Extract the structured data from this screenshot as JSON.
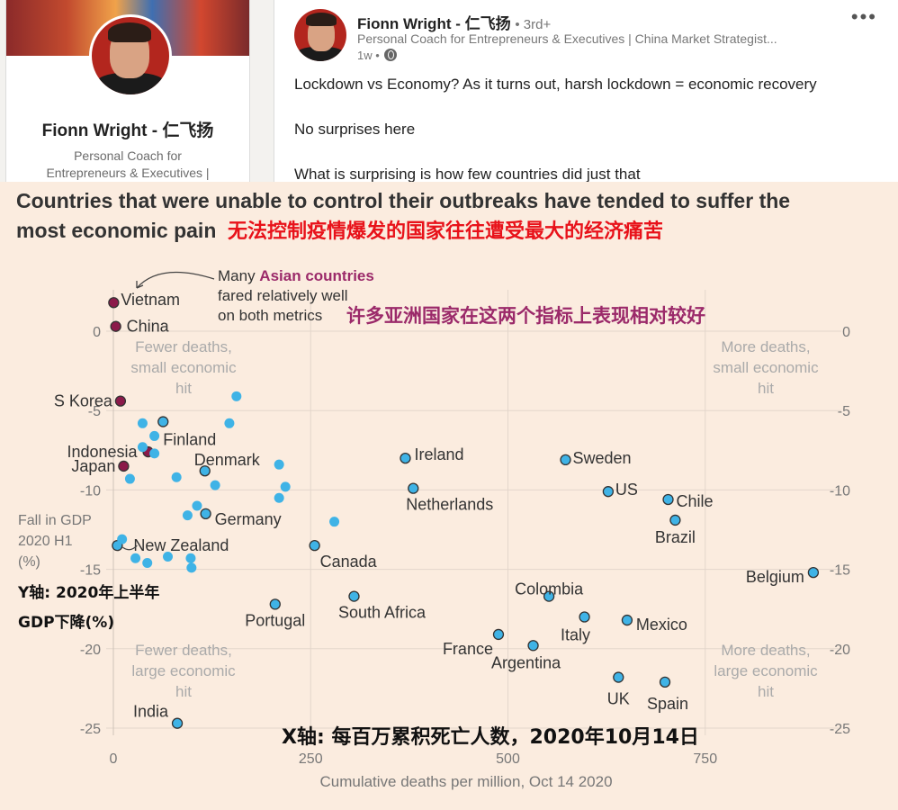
{
  "profile": {
    "name": "Fionn Wright - 仁飞扬",
    "title_line1": "Personal Coach for",
    "title_line2": "Entrepreneurs & Executives |"
  },
  "post": {
    "author": "Fionn Wright - 仁飞扬",
    "degree": "• 3rd+",
    "headline": "Personal Coach for Entrepreneurs & Executives | China Market Strategist...",
    "time": "1w •",
    "lines": [
      "Lockdown vs Economy? As it turns out, harsh lockdown = economic recovery",
      "No surprises here",
      "What is surprising is how few countries did just that"
    ],
    "more_label": "•••"
  },
  "chart_data": {
    "type": "scatter",
    "title_line1": "Countries that were unable to control their outbreaks have tended to suffer the",
    "title_line2": "most economic pain",
    "title_zh": "无法控制疫情爆发的国家往往遭受最大的经济痛苦",
    "annotation_en": [
      "Many ",
      "Asian countries",
      "fared relatively well",
      "on both metrics"
    ],
    "annotation_zh": "许多亚洲国家在这两个指标上表现相对较好",
    "ylabel": [
      "Fall in GDP",
      "2020 H1",
      "(%)"
    ],
    "ylabel_zh": [
      "Y轴: 2020年上半年",
      "GDP下降(%)"
    ],
    "xlabel": "Cumulative deaths per million, Oct 14 2020",
    "xlabel_zh": "X轴: 每百万累积死亡人数，2020年10月14日",
    "xlim": [
      0,
      930
    ],
    "ylim": [
      -25,
      0
    ],
    "xticks": [
      0,
      250,
      500,
      750
    ],
    "yticks": [
      0,
      -5,
      -10,
      -15,
      -20,
      -25
    ],
    "ytick_labels": [
      "0",
      "-5",
      "-10",
      "-15",
      "-20",
      "-25"
    ],
    "quadrant_labels": {
      "top_left": [
        "Fewer deaths,",
        "small economic",
        "hit"
      ],
      "top_right": [
        "More deaths,",
        "small economic",
        "hit"
      ],
      "bottom_left": [
        "Fewer deaths,",
        "large economic",
        "hit"
      ],
      "bottom_right": [
        "More deaths,",
        "large economic",
        "hit"
      ]
    },
    "colors": {
      "other": "#3fb3e6",
      "asian": "#8b1a4a",
      "annotation": "#9b2a6a",
      "zh_red": "#e8121a"
    },
    "points": [
      {
        "name": "Vietnam",
        "x": 0.4,
        "y": 1.8,
        "asian": true
      },
      {
        "name": "China",
        "x": 3,
        "y": 0.3,
        "asian": true
      },
      {
        "name": "S Korea",
        "x": 9,
        "y": -4.4,
        "asian": true
      },
      {
        "name": "Indonesia",
        "x": 44,
        "y": -7.6,
        "asian": true
      },
      {
        "name": "Japan",
        "x": 13,
        "y": -8.5,
        "asian": true
      },
      {
        "name": "Finland",
        "x": 63,
        "y": -5.7
      },
      {
        "name": "Denmark",
        "x": 116,
        "y": -8.8
      },
      {
        "name": "Germany",
        "x": 117,
        "y": -11.5
      },
      {
        "name": "New Zealand",
        "x": 5,
        "y": -13.5
      },
      {
        "name": "India",
        "x": 81,
        "y": -24.7
      },
      {
        "name": "Portugal",
        "x": 205,
        "y": -17.2
      },
      {
        "name": "Canada",
        "x": 255,
        "y": -13.5
      },
      {
        "name": "South Africa",
        "x": 305,
        "y": -16.7
      },
      {
        "name": "Ireland",
        "x": 370,
        "y": -8.0
      },
      {
        "name": "Netherlands",
        "x": 380,
        "y": -9.9
      },
      {
        "name": "Sweden",
        "x": 573,
        "y": -8.1
      },
      {
        "name": "US",
        "x": 627,
        "y": -10.1
      },
      {
        "name": "Chile",
        "x": 703,
        "y": -10.6
      },
      {
        "name": "Brazil",
        "x": 712,
        "y": -11.9
      },
      {
        "name": "Belgium",
        "x": 887,
        "y": -15.2
      },
      {
        "name": "Colombia",
        "x": 552,
        "y": -16.7
      },
      {
        "name": "Mexico",
        "x": 651,
        "y": -18.2
      },
      {
        "name": "Italy",
        "x": 597,
        "y": -18.0
      },
      {
        "name": "France",
        "x": 488,
        "y": -19.1
      },
      {
        "name": "Argentina",
        "x": 532,
        "y": -19.8
      },
      {
        "name": "UK",
        "x": 640,
        "y": -21.8
      },
      {
        "name": "Spain",
        "x": 699,
        "y": -22.1
      },
      {
        "name": "",
        "x": 156,
        "y": -4.1
      },
      {
        "name": "",
        "x": 37,
        "y": -5.8
      },
      {
        "name": "",
        "x": 52,
        "y": -6.6
      },
      {
        "name": "",
        "x": 37,
        "y": -7.3
      },
      {
        "name": "",
        "x": 52,
        "y": -7.7
      },
      {
        "name": "",
        "x": 147,
        "y": -5.8
      },
      {
        "name": "",
        "x": 210,
        "y": -8.4
      },
      {
        "name": "",
        "x": 218,
        "y": -9.8
      },
      {
        "name": "",
        "x": 210,
        "y": -10.5
      },
      {
        "name": "",
        "x": 80,
        "y": -9.2
      },
      {
        "name": "",
        "x": 129,
        "y": -9.7
      },
      {
        "name": "",
        "x": 21,
        "y": -9.3
      },
      {
        "name": "",
        "x": 106,
        "y": -11.0
      },
      {
        "name": "",
        "x": 94,
        "y": -11.6
      },
      {
        "name": "",
        "x": 280,
        "y": -12.0
      },
      {
        "name": "",
        "x": 11,
        "y": -13.1
      },
      {
        "name": "",
        "x": 28,
        "y": -14.3
      },
      {
        "name": "",
        "x": 43,
        "y": -14.6
      },
      {
        "name": "",
        "x": 69,
        "y": -14.2
      },
      {
        "name": "",
        "x": 98,
        "y": -14.3
      },
      {
        "name": "",
        "x": 99,
        "y": -14.9
      }
    ]
  }
}
